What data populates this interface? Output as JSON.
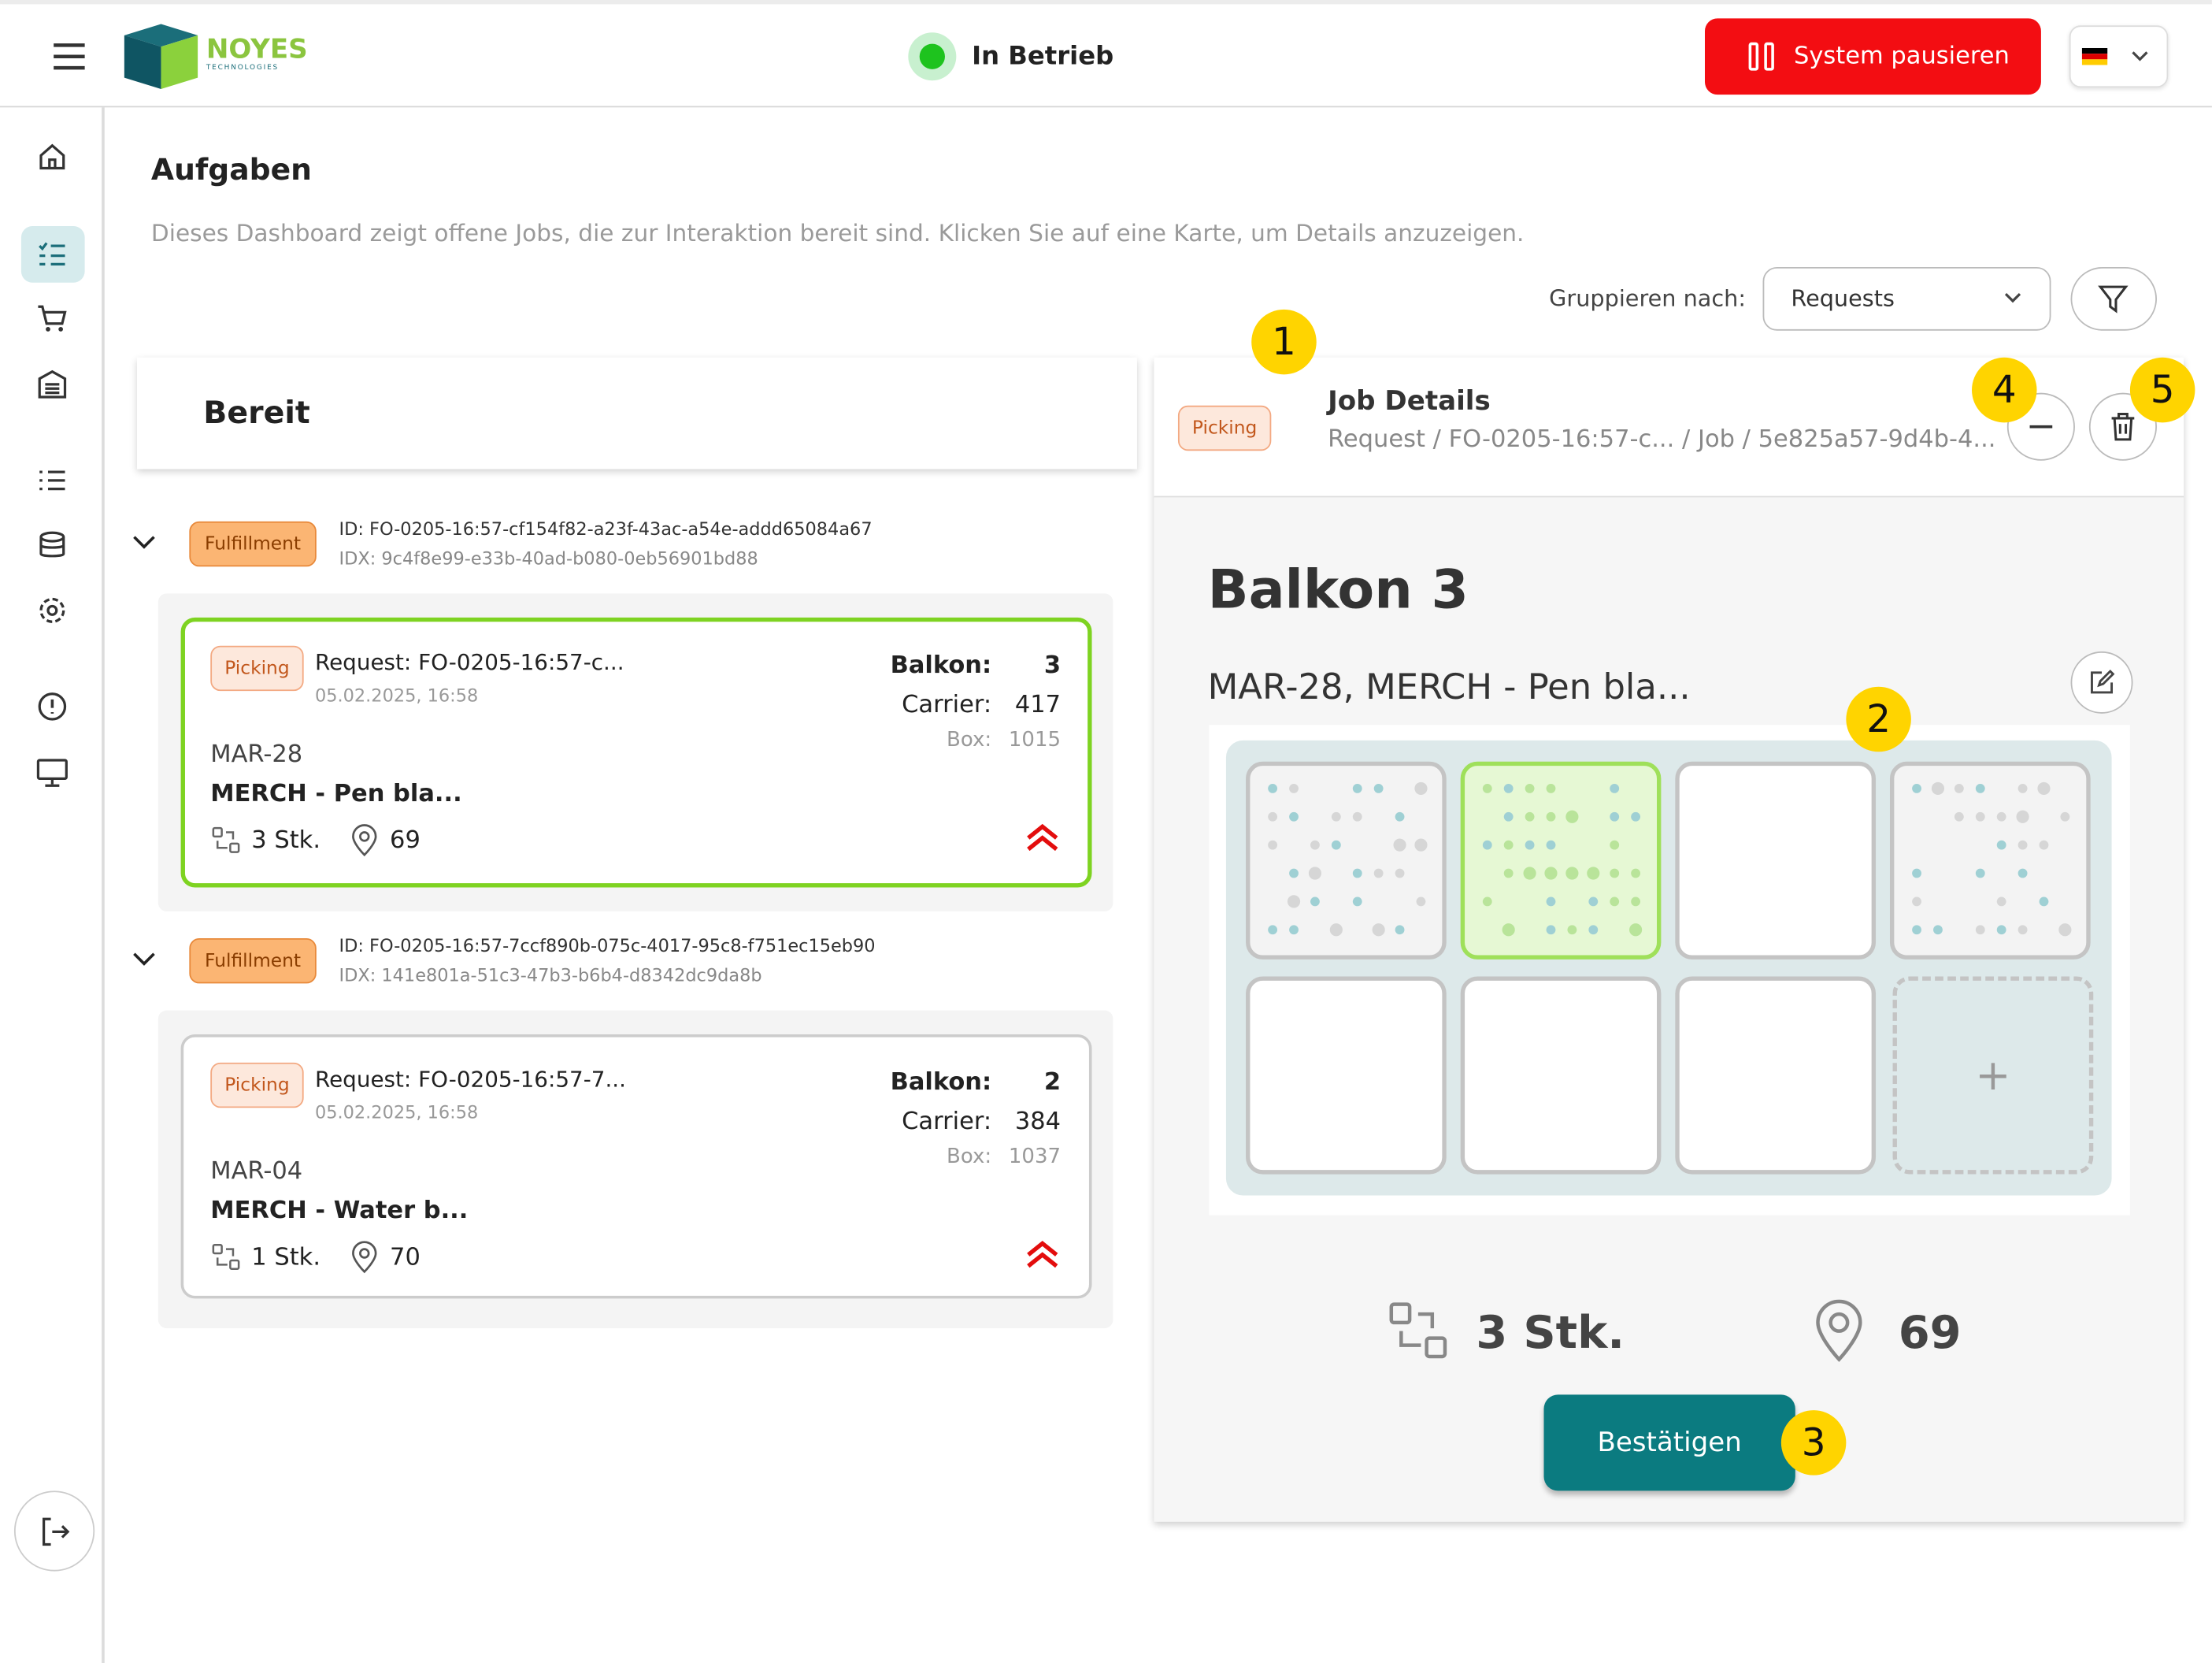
{
  "header": {
    "logo": "NOYES",
    "logo_sub": "TECHNOLOGIES",
    "status": "In Betrieb",
    "pause_button": "System pausieren"
  },
  "page": {
    "title": "Aufgaben",
    "description": "Dieses Dashboard zeigt offene Jobs, die zur Interaktion bereit sind. Klicken Sie auf eine Karte, um Details anzuzeigen.",
    "group_label": "Gruppieren nach:",
    "group_value": "Requests"
  },
  "column": {
    "title": "Bereit"
  },
  "groups": [
    {
      "tag": "Fulfillment",
      "id": "ID: FO-0205-16:57-cf154f82-a23f-43ac-a54e-addd65084a67",
      "idx": "IDX: 9c4f8e99-e33b-40ad-b080-0eb56901bd88",
      "card": {
        "tag": "Picking",
        "request": "Request: FO-0205-16:57-c...",
        "date": "05.02.2025, 16:58",
        "balkon_label": "Balkon:",
        "balkon": "3",
        "carrier_label": "Carrier:",
        "carrier": "417",
        "box_label": "Box:",
        "box": "1015",
        "location": "MAR-28",
        "product": "MERCH - Pen bla...",
        "qty": "3 Stk.",
        "place": "69"
      }
    },
    {
      "tag": "Fulfillment",
      "id": "ID: FO-0205-16:57-7ccf890b-075c-4017-95c8-f751ec15eb90",
      "idx": "IDX: 141e801a-51c3-47b3-b6b4-d8342dc9da8b",
      "card": {
        "tag": "Picking",
        "request": "Request: FO-0205-16:57-7...",
        "date": "05.02.2025, 16:58",
        "balkon_label": "Balkon:",
        "balkon": "2",
        "carrier_label": "Carrier:",
        "carrier": "384",
        "box_label": "Box:",
        "box": "1037",
        "location": "MAR-04",
        "product": "MERCH - Water b...",
        "qty": "1 Stk.",
        "place": "70"
      }
    }
  ],
  "details": {
    "tag": "Picking",
    "title": "Job Details",
    "breadcrumb": "Request / FO-0205-16:57-c... / Job / 5e825a57-9d4b-4...",
    "heading": "Balkon 3",
    "subheading": "MAR-28, MERCH - Pen bla...",
    "add": "+",
    "qty": "3 Stk.",
    "place": "69",
    "confirm": "Bestätigen"
  },
  "annotations": [
    "1",
    "2",
    "3",
    "4",
    "5"
  ]
}
